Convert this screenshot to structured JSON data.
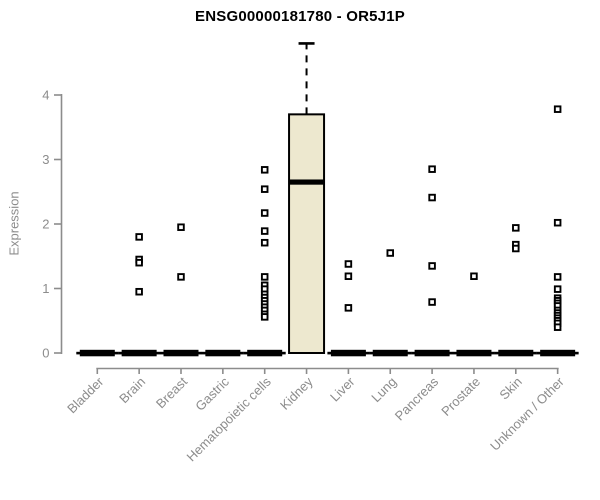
{
  "title": "ENSG00000181780 - OR5J1P",
  "chart_data": {
    "type": "box",
    "title": "ENSG00000181780 - OR5J1P",
    "xlabel": "",
    "ylabel": "Expression",
    "ylim": [
      0,
      4
    ],
    "yticks": [
      0,
      1,
      2,
      3,
      4
    ],
    "grid": false,
    "legend": "none",
    "colors": {
      "box_fill": "#ede8cf",
      "box_stroke": "#000000",
      "axis": "#8c8c8c",
      "tick_label": "#8c8c8c",
      "title": "#000000",
      "outlier": "#000000"
    },
    "categories": [
      "Bladder",
      "Brain",
      "Breast",
      "Gastric",
      "Hematopoietic cells",
      "Kidney",
      "Liver",
      "Lung",
      "Pancreas",
      "Prostate",
      "Skin",
      "Unknown / Other"
    ],
    "series": [
      {
        "category": "Bladder",
        "q1": 0,
        "median": 0,
        "q3": 0,
        "whisker_low": 0,
        "whisker_high": 0,
        "outliers": []
      },
      {
        "category": "Brain",
        "q1": 0,
        "median": 0,
        "q3": 0,
        "whisker_low": 0,
        "whisker_high": 0,
        "outliers": [
          1.8,
          1.45,
          1.4,
          0.95
        ]
      },
      {
        "category": "Breast",
        "q1": 0,
        "median": 0,
        "q3": 0,
        "whisker_low": 0,
        "whisker_high": 0,
        "outliers": [
          1.95,
          1.18
        ]
      },
      {
        "category": "Gastric",
        "q1": 0,
        "median": 0,
        "q3": 0,
        "whisker_low": 0,
        "whisker_high": 0,
        "outliers": []
      },
      {
        "category": "Hematopoietic cells",
        "q1": 0,
        "median": 0,
        "q3": 0,
        "whisker_low": 0,
        "whisker_high": 0,
        "outliers": [
          2.84,
          2.54,
          2.17,
          1.89,
          1.71,
          1.18,
          1.05,
          0.99,
          0.91,
          0.86,
          0.81,
          0.76,
          0.71,
          0.66,
          0.6,
          0.56
        ]
      },
      {
        "category": "Kidney",
        "q1": 0,
        "median": 2.65,
        "q3": 3.7,
        "whisker_low": 0,
        "whisker_high": 4.8,
        "outliers": []
      },
      {
        "category": "Liver",
        "q1": 0,
        "median": 0,
        "q3": 0,
        "whisker_low": 0,
        "whisker_high": 0,
        "outliers": [
          1.38,
          1.19,
          0.7
        ]
      },
      {
        "category": "Lung",
        "q1": 0,
        "median": 0,
        "q3": 0,
        "whisker_low": 0,
        "whisker_high": 0,
        "outliers": [
          1.55
        ]
      },
      {
        "category": "Pancreas",
        "q1": 0,
        "median": 0,
        "q3": 0,
        "whisker_low": 0,
        "whisker_high": 0,
        "outliers": [
          2.85,
          2.41,
          1.35,
          0.79
        ]
      },
      {
        "category": "Prostate",
        "q1": 0,
        "median": 0,
        "q3": 0,
        "whisker_low": 0,
        "whisker_high": 0,
        "outliers": [
          1.19
        ]
      },
      {
        "category": "Skin",
        "q1": 0,
        "median": 0,
        "q3": 0,
        "whisker_low": 0,
        "whisker_high": 0,
        "outliers": [
          1.94,
          1.68,
          1.62
        ]
      },
      {
        "category": "Unknown / Other",
        "q1": 0,
        "median": 0,
        "q3": 0,
        "whisker_low": 0,
        "whisker_high": 0,
        "outliers": [
          3.78,
          2.02,
          1.18,
          0.99,
          0.85,
          0.81,
          0.77,
          0.73,
          0.66,
          0.62,
          0.58,
          0.54,
          0.5,
          0.46,
          0.4
        ]
      }
    ]
  }
}
